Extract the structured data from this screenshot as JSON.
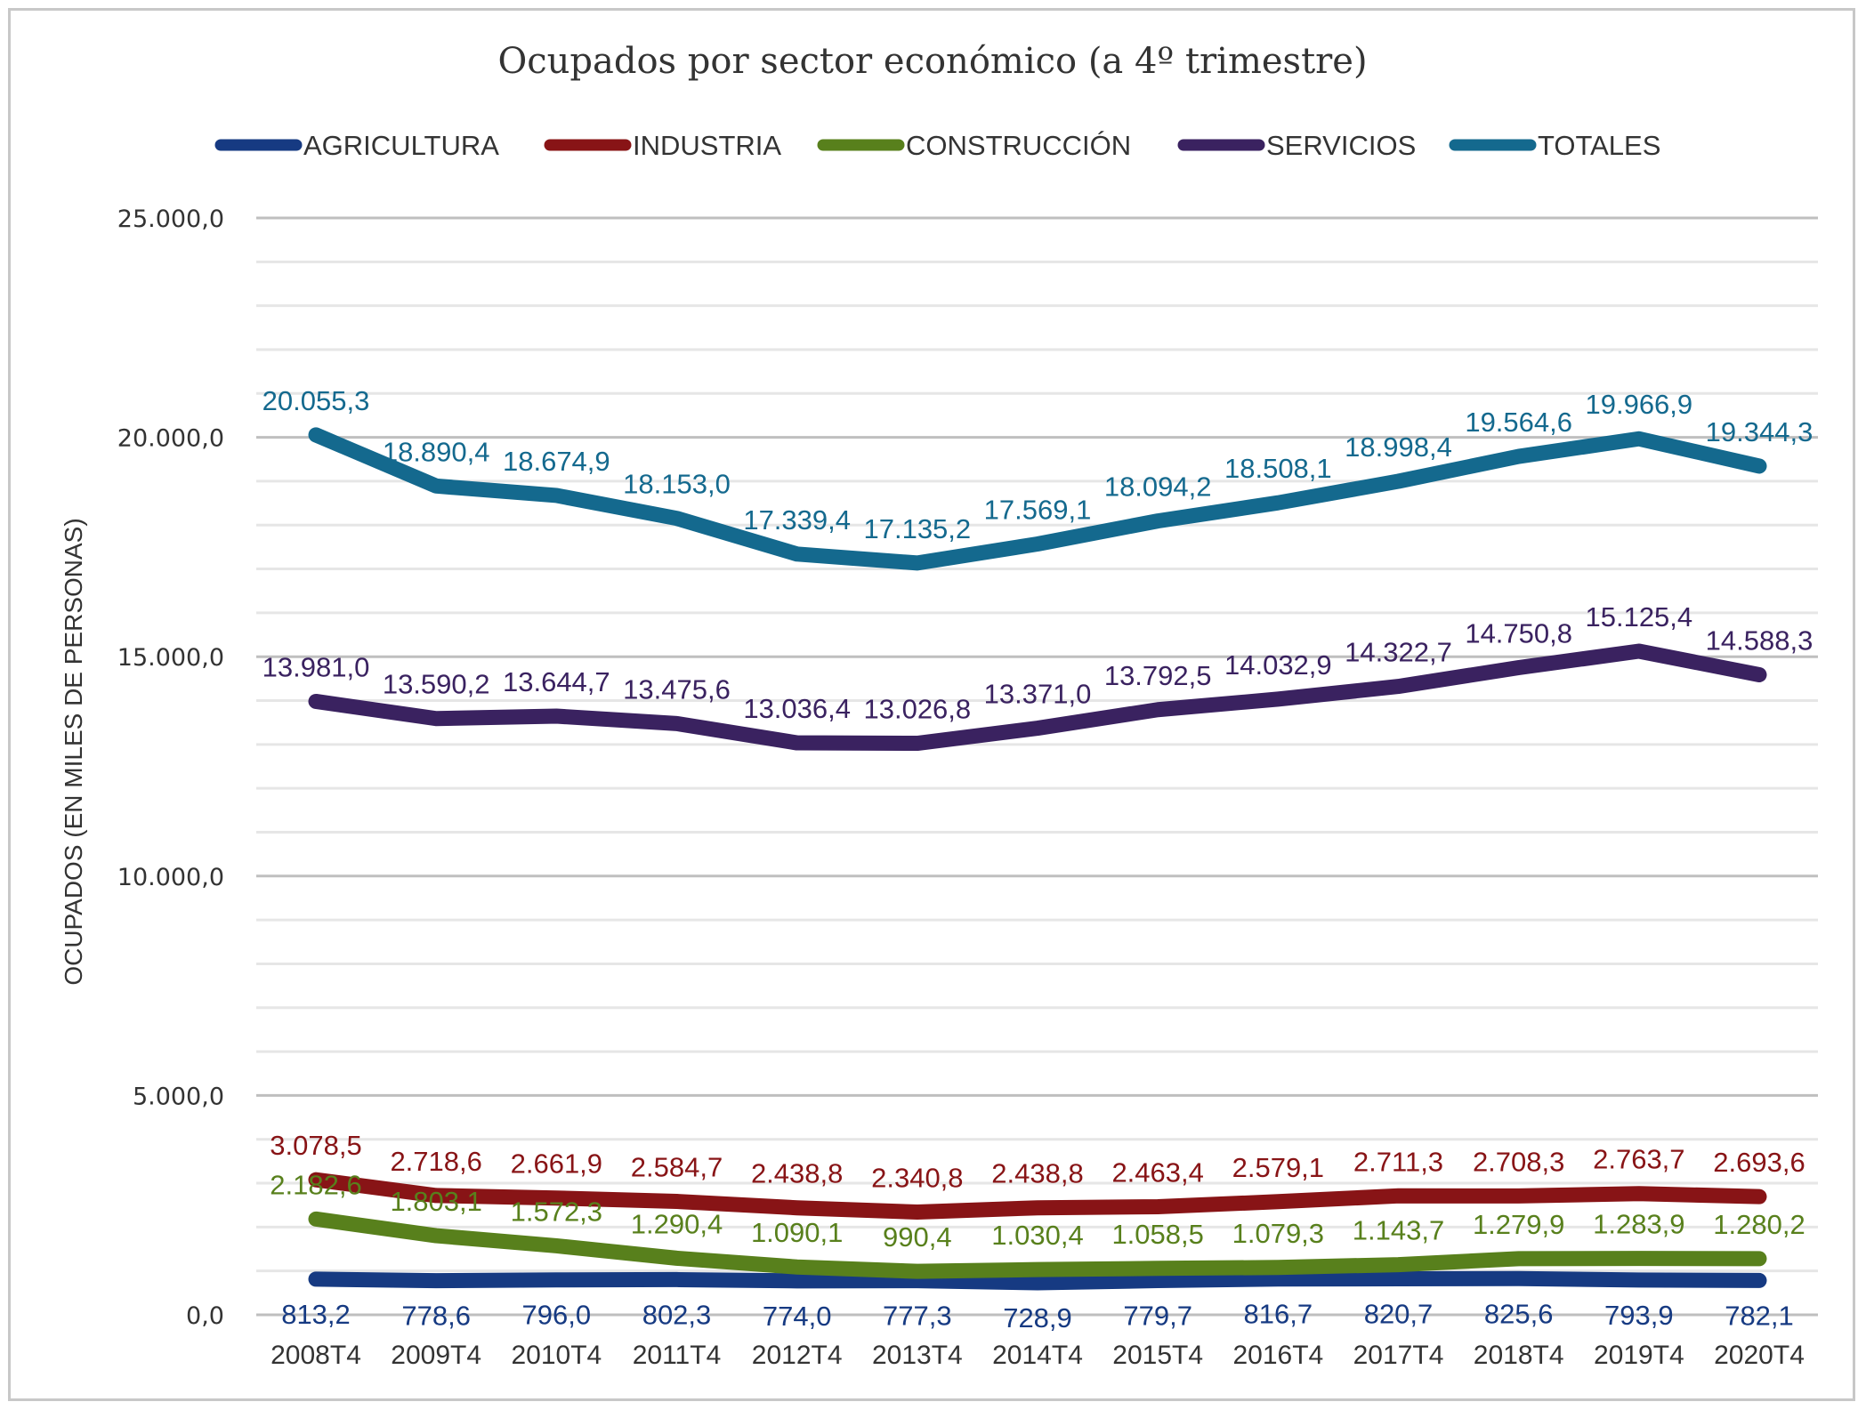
{
  "chart_data": {
    "type": "line",
    "title": "Ocupados por sector económico (a 4º trimestre)",
    "xlabel": "",
    "ylabel": "OCUPADOS (EN MILES DE PERSONAS)",
    "ylim": [
      0,
      25000
    ],
    "yticks": [
      0,
      5000,
      10000,
      15000,
      20000,
      25000
    ],
    "ytick_labels": [
      "0,0",
      "5.000,0",
      "10.000,0",
      "15.000,0",
      "20.000,0",
      "25.000,0"
    ],
    "minor_grid_step": 1000,
    "grid": true,
    "legend_position": "top",
    "categories": [
      "2008T4",
      "2009T4",
      "2010T4",
      "2011T4",
      "2012T4",
      "2013T4",
      "2014T4",
      "2015T4",
      "2016T4",
      "2017T4",
      "2018T4",
      "2019T4",
      "2020T4"
    ],
    "series": [
      {
        "name": "AGRICULTURA",
        "color": "#163a82",
        "label_position": "below",
        "values": [
          813.2,
          778.6,
          796.0,
          802.3,
          774.0,
          777.3,
          728.9,
          779.7,
          816.7,
          820.7,
          825.6,
          793.9,
          782.1
        ],
        "labels": [
          "813,2",
          "778,6",
          "796,0",
          "802,3",
          "774,0",
          "777,3",
          "728,9",
          "779,7",
          "816,7",
          "820,7",
          "825,6",
          "793,9",
          "782,1"
        ]
      },
      {
        "name": "INDUSTRIA",
        "color": "#881416",
        "label_position": "above",
        "values": [
          3078.5,
          2718.6,
          2661.9,
          2584.7,
          2438.8,
          2340.8,
          2438.8,
          2463.4,
          2579.1,
          2711.3,
          2708.3,
          2763.7,
          2693.6
        ],
        "labels": [
          "3.078,5",
          "2.718,6",
          "2.661,9",
          "2.584,7",
          "2.438,8",
          "2.340,8",
          "2.438,8",
          "2.463,4",
          "2.579,1",
          "2.711,3",
          "2.708,3",
          "2.763,7",
          "2.693,6"
        ]
      },
      {
        "name": "CONSTRUCCIÓN",
        "color": "#58801c",
        "label_position": "above",
        "values": [
          2182.6,
          1803.1,
          1572.3,
          1290.4,
          1090.1,
          990.4,
          1030.4,
          1058.5,
          1079.3,
          1143.7,
          1279.9,
          1283.9,
          1280.2
        ],
        "labels": [
          "2.182,6",
          "1.803,1",
          "1.572,3",
          "1.290,4",
          "1.090,1",
          "990,4",
          "1.030,4",
          "1.058,5",
          "1.079,3",
          "1.143,7",
          "1.279,9",
          "1.283,9",
          "1.280,2"
        ]
      },
      {
        "name": "SERVICIOS",
        "color": "#3a2260",
        "label_position": "above",
        "values": [
          13981.0,
          13590.2,
          13644.7,
          13475.6,
          13036.4,
          13026.8,
          13371.0,
          13792.5,
          14032.9,
          14322.7,
          14750.8,
          15125.4,
          14588.3
        ],
        "labels": [
          "13.981,0",
          "13.590,2",
          "13.644,7",
          "13.475,6",
          "13.036,4",
          "13.026,8",
          "13.371,0",
          "13.792,5",
          "14.032,9",
          "14.322,7",
          "14.750,8",
          "15.125,4",
          "14.588,3"
        ]
      },
      {
        "name": "TOTALES",
        "color": "#14698e",
        "label_position": "above",
        "values": [
          20055.3,
          18890.4,
          18674.9,
          18153.0,
          17339.4,
          17135.2,
          17569.1,
          18094.2,
          18508.1,
          18998.4,
          19564.6,
          19966.9,
          19344.3
        ],
        "labels": [
          "20.055,3",
          "18.890,4",
          "18.674,9",
          "18.153,0",
          "17.339,4",
          "17.135,2",
          "17.569,1",
          "18.094,2",
          "18.508,1",
          "18.998,4",
          "19.564,6",
          "19.966,9",
          "19.344,3"
        ]
      }
    ]
  }
}
